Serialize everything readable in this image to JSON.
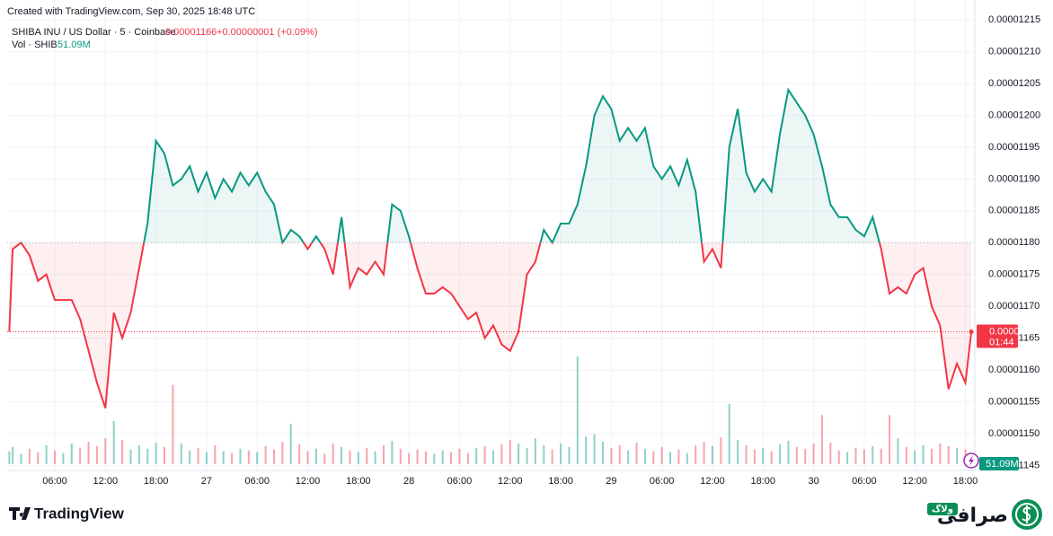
{
  "header": {
    "created": "Created with TradingView.com, Sep 30, 2025 18:48 UTC",
    "symbol": "SHIBA INU / US Dollar · 5 · Coinbase",
    "change": "+0.00000001 (+0.09%)",
    "countdown": "01:44"
  },
  "chart_data": {
    "type": "baseline",
    "x": [
      0.6,
      1,
      2,
      3,
      4,
      5,
      6,
      7,
      8,
      9,
      10,
      11,
      12,
      13,
      14,
      15,
      16,
      17,
      18,
      19,
      20,
      21,
      22,
      23,
      24,
      25,
      26,
      27,
      28,
      29,
      30,
      31,
      32,
      33,
      34,
      35,
      36,
      37,
      38,
      39,
      40,
      41,
      42,
      43,
      44,
      45,
      46,
      47,
      48,
      49,
      50,
      51,
      52,
      53,
      54,
      55,
      56,
      57,
      58,
      59,
      60,
      61,
      62,
      63,
      64,
      65,
      66,
      67,
      68,
      69,
      70,
      71,
      72,
      73,
      74,
      75,
      76,
      77,
      78,
      79,
      80,
      81,
      82,
      83,
      84,
      85,
      86,
      87,
      88,
      89,
      90,
      91,
      92,
      93,
      94,
      95,
      96,
      97,
      98,
      99,
      100,
      101,
      102,
      103,
      104,
      105,
      106,
      107,
      108,
      109,
      110,
      111,
      112,
      113,
      114,
      114.7
    ],
    "values": [
      1.166e-05,
      1.179e-05,
      1.18e-05,
      1.178e-05,
      1.174e-05,
      1.175e-05,
      1.171e-05,
      1.171e-05,
      1.171e-05,
      1.168e-05,
      1.163e-05,
      1.158e-05,
      1.154e-05,
      1.169e-05,
      1.165e-05,
      1.169e-05,
      1.176e-05,
      1.183e-05,
      1.196e-05,
      1.194e-05,
      1.189e-05,
      1.19e-05,
      1.192e-05,
      1.188e-05,
      1.191e-05,
      1.187e-05,
      1.19e-05,
      1.188e-05,
      1.191e-05,
      1.189e-05,
      1.191e-05,
      1.188e-05,
      1.186e-05,
      1.18e-05,
      1.182e-05,
      1.181e-05,
      1.179e-05,
      1.181e-05,
      1.179e-05,
      1.175e-05,
      1.184e-05,
      1.173e-05,
      1.176e-05,
      1.175e-05,
      1.177e-05,
      1.175e-05,
      1.186e-05,
      1.185e-05,
      1.181e-05,
      1.176e-05,
      1.172e-05,
      1.172e-05,
      1.173e-05,
      1.172e-05,
      1.17e-05,
      1.168e-05,
      1.169e-05,
      1.165e-05,
      1.167e-05,
      1.164e-05,
      1.163e-05,
      1.166e-05,
      1.175e-05,
      1.177e-05,
      1.182e-05,
      1.18e-05,
      1.183e-05,
      1.183e-05,
      1.186e-05,
      1.192e-05,
      1.2e-05,
      1.203e-05,
      1.201e-05,
      1.196e-05,
      1.198e-05,
      1.196e-05,
      1.198e-05,
      1.192e-05,
      1.19e-05,
      1.192e-05,
      1.189e-05,
      1.193e-05,
      1.188e-05,
      1.177e-05,
      1.179e-05,
      1.176e-05,
      1.195e-05,
      1.201e-05,
      1.191e-05,
      1.188e-05,
      1.19e-05,
      1.188e-05,
      1.197e-05,
      1.204e-05,
      1.202e-05,
      1.2e-05,
      1.197e-05,
      1.192e-05,
      1.186e-05,
      1.184e-05,
      1.184e-05,
      1.182e-05,
      1.181e-05,
      1.184e-05,
      1.179e-05,
      1.172e-05,
      1.173e-05,
      1.172e-05,
      1.175e-05,
      1.176e-05,
      1.17e-05,
      1.167e-05,
      1.157e-05,
      1.161e-05,
      1.158e-05,
      1.166e-05
    ],
    "baseline": 1.18e-05,
    "last_price": 1.166e-05,
    "up_color": "#089981",
    "down_color": "#f23645",
    "xlim": [
      0.35,
      114.8
    ],
    "xticks": [
      {
        "value": 6,
        "label": "06:00"
      },
      {
        "value": 12,
        "label": "12:00"
      },
      {
        "value": 18,
        "label": "18:00"
      },
      {
        "value": 24,
        "label": "27"
      },
      {
        "value": 30,
        "label": "06:00"
      },
      {
        "value": 36,
        "label": "12:00"
      },
      {
        "value": 42,
        "label": "18:00"
      },
      {
        "value": 48,
        "label": "28"
      },
      {
        "value": 54,
        "label": "06:00"
      },
      {
        "value": 60,
        "label": "12:00"
      },
      {
        "value": 66,
        "label": "18:00"
      },
      {
        "value": 72,
        "label": "29"
      },
      {
        "value": 78,
        "label": "06:00"
      },
      {
        "value": 84,
        "label": "12:00"
      },
      {
        "value": 90,
        "label": "18:00"
      },
      {
        "value": 96,
        "label": "30"
      },
      {
        "value": 102,
        "label": "06:00"
      },
      {
        "value": 108,
        "label": "12:00"
      },
      {
        "value": 114,
        "label": "18:00"
      }
    ],
    "ylim": [
      1.1445e-05,
      1.216e-05
    ],
    "yticks": [
      1.215e-05,
      {
        "value": 1.21e-05,
        "label": "0.00001210"
      },
      1.205e-05,
      {
        "value": 1.2e-05,
        "label": "0.00001200"
      },
      1.195e-05,
      {
        "value": 1.19e-05,
        "label": "0.00001190"
      },
      1.185e-05,
      {
        "value": 1.18e-05,
        "label": "0.00001180"
      },
      1.175e-05,
      {
        "value": 1.17e-05,
        "label": "0.00001170"
      },
      1.165e-05,
      {
        "value": 1.16e-05,
        "label": "0.00001160"
      },
      1.155e-05,
      {
        "value": 1.15e-05,
        "label": "0.00001150"
      },
      1.145e-05
    ],
    "grid": true,
    "volume": {
      "name": "Vol · SHIB",
      "last_value_label": "51.09M",
      "ylim": [
        0,
        2500000000.0
      ],
      "values": [
        150000000.0,
        200000000.0,
        120000000.0,
        180000000.0,
        140000000.0,
        220000000.0,
        160000000.0,
        130000000.0,
        240000000.0,
        190000000.0,
        260000000.0,
        210000000.0,
        300000000.0,
        500000000.0,
        280000000.0,
        170000000.0,
        220000000.0,
        180000000.0,
        250000000.0,
        200000000.0,
        920000000.0,
        240000000.0,
        160000000.0,
        190000000.0,
        140000000.0,
        220000000.0,
        150000000.0,
        130000000.0,
        180000000.0,
        160000000.0,
        140000000.0,
        210000000.0,
        170000000.0,
        260000000.0,
        470000000.0,
        230000000.0,
        150000000.0,
        180000000.0,
        120000000.0,
        240000000.0,
        200000000.0,
        160000000.0,
        140000000.0,
        190000000.0,
        150000000.0,
        220000000.0,
        270000000.0,
        180000000.0,
        130000000.0,
        170000000.0,
        150000000.0,
        120000000.0,
        160000000.0,
        140000000.0,
        180000000.0,
        130000000.0,
        190000000.0,
        210000000.0,
        160000000.0,
        230000000.0,
        280000000.0,
        240000000.0,
        190000000.0,
        300000000.0,
        220000000.0,
        170000000.0,
        240000000.0,
        200000000.0,
        1250000000.0,
        320000000.0,
        350000000.0,
        260000000.0,
        190000000.0,
        220000000.0,
        160000000.0,
        250000000.0,
        180000000.0,
        150000000.0,
        200000000.0,
        140000000.0,
        170000000.0,
        130000000.0,
        220000000.0,
        260000000.0,
        210000000.0,
        310000000.0,
        700000000.0,
        280000000.0,
        220000000.0,
        170000000.0,
        190000000.0,
        150000000.0,
        230000000.0,
        270000000.0,
        200000000.0,
        180000000.0,
        240000000.0,
        570000000.0,
        250000000.0,
        160000000.0,
        140000000.0,
        190000000.0,
        170000000.0,
        210000000.0,
        180000000.0,
        570000000.0,
        300000000.0,
        200000000.0,
        160000000.0,
        220000000.0,
        180000000.0,
        240000000.0,
        210000000.0,
        190000000.0,
        170000000.0,
        51090000.0
      ]
    }
  },
  "footer": {
    "brand": "TradingView",
    "watermark": "صرافی",
    "watermark_badge": "ولاگ"
  }
}
